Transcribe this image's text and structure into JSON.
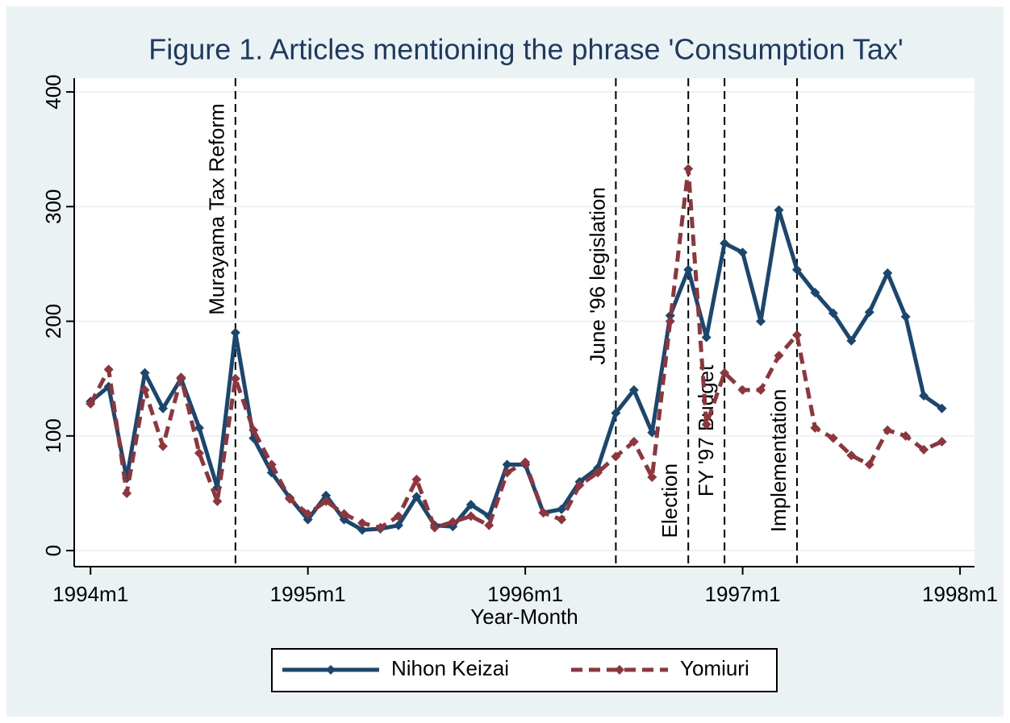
{
  "chart_data": {
    "type": "line",
    "title": "Figure 1. Articles mentioning the phrase 'Consumption Tax'",
    "xlabel": "Year-Month",
    "x": [
      408,
      409,
      410,
      411,
      412,
      413,
      414,
      415,
      416,
      417,
      418,
      419,
      420,
      421,
      422,
      423,
      424,
      425,
      426,
      427,
      428,
      429,
      430,
      431,
      432,
      433,
      434,
      435,
      436,
      437,
      438,
      439,
      440,
      441,
      442,
      443,
      444,
      445,
      446,
      447,
      448,
      449,
      450,
      451,
      452,
      453,
      454,
      455
    ],
    "series": [
      {
        "name": "Nihon Keizai",
        "color": "#1a476f",
        "dash": false,
        "values": [
          130,
          143,
          63,
          155,
          124,
          150,
          107,
          55,
          190,
          98,
          68,
          46,
          27,
          48,
          27,
          18,
          19,
          22,
          47,
          22,
          21,
          40,
          30,
          75,
          75,
          33,
          36,
          60,
          72,
          120,
          140,
          103,
          205,
          245,
          186,
          268,
          260,
          200,
          297,
          245,
          225,
          207,
          183,
          208,
          242,
          204,
          135,
          124
        ]
      },
      {
        "name": "Yomiuri",
        "color": "#90353b",
        "dash": true,
        "values": [
          128,
          158,
          50,
          140,
          91,
          151,
          85,
          43,
          150,
          105,
          75,
          45,
          32,
          43,
          32,
          24,
          20,
          30,
          62,
          20,
          25,
          30,
          22,
          68,
          77,
          33,
          27,
          57,
          68,
          82,
          95,
          64,
          200,
          333,
          110,
          155,
          140,
          140,
          170,
          188,
          107,
          98,
          83,
          75,
          105,
          100,
          88,
          95
        ]
      }
    ],
    "xlim": [
      407.1,
      456.8
    ],
    "xticks": [
      {
        "value": 408,
        "label": "1994m1"
      },
      {
        "value": 420,
        "label": "1995m1"
      },
      {
        "value": 432,
        "label": "1996m1"
      },
      {
        "value": 444,
        "label": "1997m1"
      },
      {
        "value": 456,
        "label": "1998m1"
      }
    ],
    "ylim": [
      -14,
      412
    ],
    "yticks": [
      0,
      100,
      200,
      300,
      400
    ],
    "grid": true,
    "legend": "bottom",
    "annotations": [
      {
        "x": 416,
        "y": 390,
        "label": "Murayama Tax Reform"
      },
      {
        "x": 437,
        "y": 317,
        "label": "June '96 legislation"
      },
      {
        "x": 441,
        "y": 76,
        "label": "Election"
      },
      {
        "x": 443,
        "y": 162,
        "label": "FY '97 Budget"
      },
      {
        "x": 447,
        "y": 141,
        "label": "Implementation"
      }
    ]
  }
}
